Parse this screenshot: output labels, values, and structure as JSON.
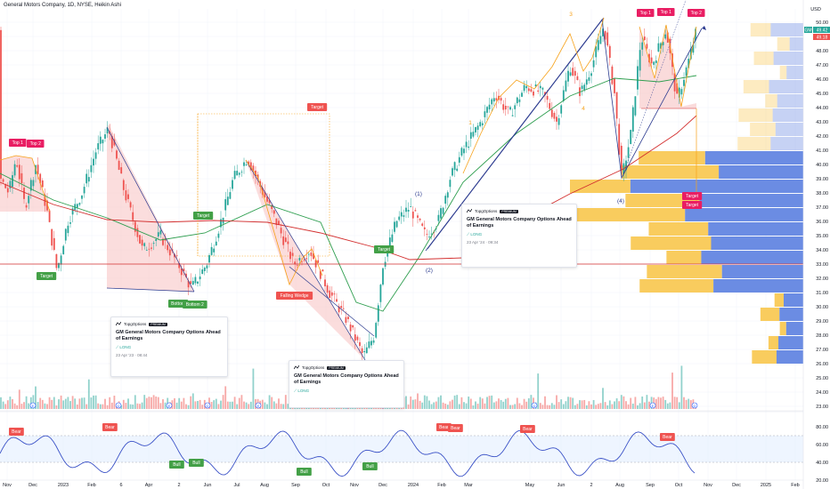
{
  "header": {
    "title": "General Motors Company, 1D, NYSE, Heikin Ashi"
  },
  "price_axis": {
    "currency": "USD",
    "ticks": [
      "50.00",
      "49.00",
      "48.00",
      "47.00",
      "46.00",
      "45.00",
      "44.00",
      "43.00",
      "42.00",
      "41.00",
      "40.00",
      "39.00",
      "38.00",
      "37.00",
      "36.00",
      "35.00",
      "34.00",
      "33.00",
      "32.00",
      "31.00",
      "30.00",
      "29.00",
      "28.00",
      "27.00",
      "26.00",
      "25.00",
      "24.00",
      "23.00"
    ],
    "ticker_tag": "GM",
    "last_price": "49.42",
    "prev_price": "49.18"
  },
  "rsi_axis": {
    "ticks": [
      "80.00",
      "60.00",
      "40.00",
      "20.00"
    ]
  },
  "time_axis": {
    "labels": [
      "Nov",
      "Dec",
      "2023",
      "Feb",
      "6",
      "Apr",
      "2",
      "Jun",
      "Jul",
      "Aug",
      "Sep",
      "Oct",
      "Nov",
      "Dec",
      "2024",
      "Feb",
      "Mar",
      "May",
      "Jun",
      "2",
      "Aug",
      "Sep",
      "Oct",
      "Nov",
      "Dec",
      "2025",
      "Feb"
    ]
  },
  "annotations": {
    "top1": "Top 1",
    "top2": "Top 2",
    "target": "Target",
    "bottom": "Bottom",
    "bottom2": "Bottom 2",
    "falling_wedge": "Falling Wedge",
    "bear": "Bear",
    "bull": "Bull",
    "wave1": "(1)",
    "wave2": "(2)",
    "wave4": "(4)",
    "w3": "3",
    "w1": "1",
    "w4": "4",
    "events": [
      "E",
      "D"
    ]
  },
  "cards": [
    {
      "brand": "TopgOptions",
      "badge": "PREMIUM",
      "title": "GM General Motors Company Options Ahead of Earnings",
      "signal": "LONG",
      "meta": "23 Apr '24 · 09:34"
    },
    {
      "brand": "TopgOptions",
      "badge": "PREMIUM",
      "title": "GM General Motors Company Options Ahead of Earnings",
      "signal": "LONG",
      "meta": "23 Apr '23 · 08:44"
    },
    {
      "brand": "TopgOptions",
      "badge": "PREMIUM",
      "title": "GM General Motors Company Options Ahead of Earnings",
      "signal": "LONG",
      "meta": ""
    }
  ],
  "colors": {
    "up": "#26a69a",
    "down": "#ef5350",
    "ma_green": "#2e9e4f",
    "ma_red": "#d32f2f",
    "trend_blue": "#2b3a8f",
    "harmonic_orange": "#f7a21b",
    "vp_blue": "#5b7fe0",
    "vp_yellow": "#f8c74d"
  },
  "chart_data": {
    "type": "candlestick",
    "title": "General Motors Company, 1D, NYSE, Heikin Ashi",
    "ylim": [
      23,
      51
    ],
    "x": [
      "Nov",
      "Dec",
      "2023",
      "Feb",
      "Apr",
      "Jun",
      "Jul",
      "Aug",
      "Sep",
      "Oct",
      "Nov",
      "Dec",
      "2024",
      "Feb",
      "Mar",
      "May",
      "Jun",
      "Aug",
      "Sep",
      "Oct"
    ],
    "series": [
      {
        "values": [
          39.5,
          36.5,
          33,
          41,
          33.5,
          34.5,
          41,
          33,
          31,
          27,
          33,
          36,
          34.5,
          38,
          43,
          45,
          50,
          39,
          50,
          49.4
        ]
      }
    ],
    "last": 49.42,
    "horizontal_line": 33,
    "rsi": {
      "ylim": [
        20,
        90
      ],
      "band": [
        40,
        70
      ]
    }
  }
}
